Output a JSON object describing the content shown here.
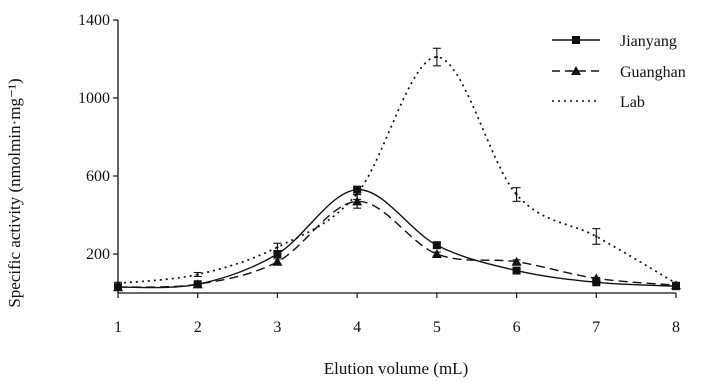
{
  "chart_data": {
    "type": "line",
    "title": "",
    "xlabel": "Elution volume (mL)",
    "ylabel": "Specific activity (nmolmin·mg⁻¹)",
    "x": [
      1,
      2,
      3,
      4,
      5,
      6,
      7,
      8
    ],
    "xlim": [
      1,
      8
    ],
    "ylim": [
      0,
      1400
    ],
    "yticks": [
      200,
      600,
      1000,
      1400
    ],
    "grid": false,
    "legend_position": "top-right",
    "series": [
      {
        "name": "Jianyang",
        "line_style": "solid",
        "marker": "square",
        "values": [
          30,
          45,
          200,
          530,
          245,
          115,
          55,
          35
        ],
        "errors": [
          5,
          5,
          15,
          15,
          15,
          10,
          5,
          5
        ]
      },
      {
        "name": "Guanghan",
        "line_style": "dashed",
        "marker": "triangle",
        "values": [
          30,
          45,
          160,
          470,
          200,
          160,
          75,
          40
        ],
        "errors": [
          5,
          5,
          15,
          35,
          10,
          10,
          5,
          5
        ]
      },
      {
        "name": "Lab",
        "line_style": "dotted",
        "marker": "none",
        "values": [
          50,
          95,
          235,
          510,
          1210,
          505,
          290,
          50
        ],
        "errors": [
          5,
          10,
          20,
          30,
          45,
          35,
          40,
          5
        ]
      }
    ]
  },
  "colors": {
    "line": "#111111",
    "background": "#ffffff"
  }
}
